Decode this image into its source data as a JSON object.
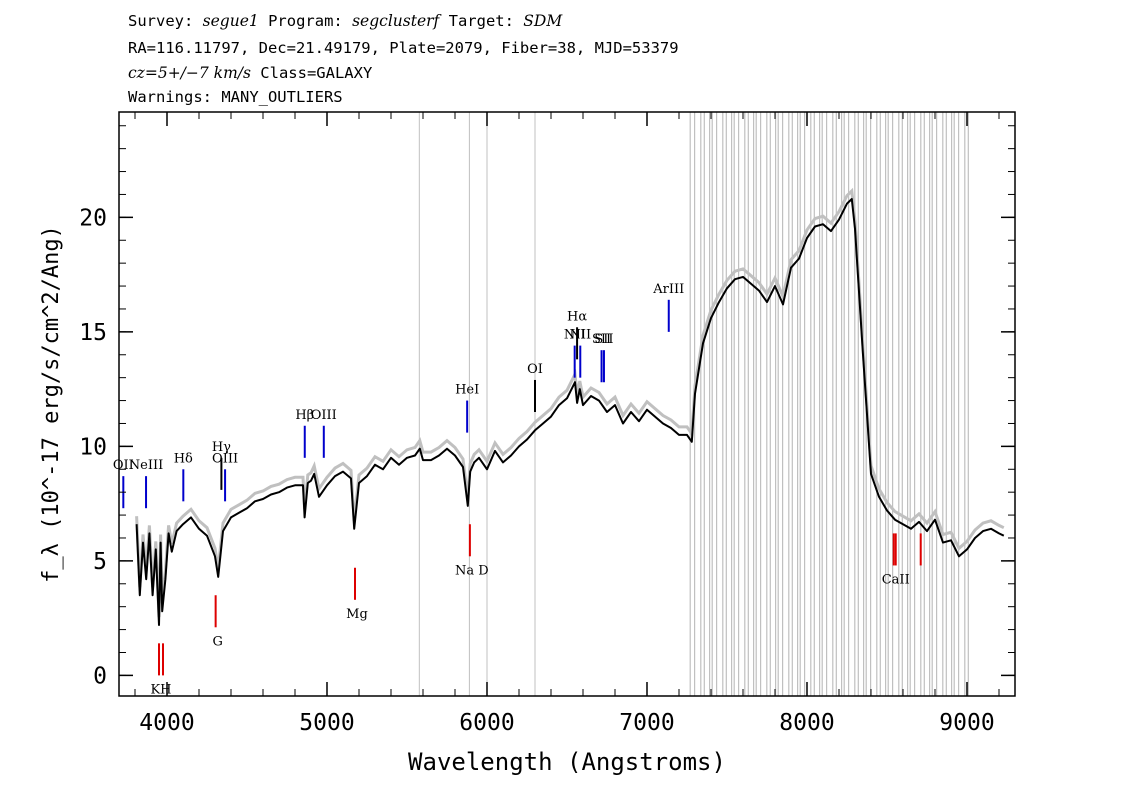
{
  "header": {
    "line1": {
      "survey_label": "Survey:",
      "survey": "segue1",
      "program_label": "Program:",
      "program": "segclusterf",
      "target_label": "Target:",
      "target": "SDM"
    },
    "line2": "RA=116.11797, Dec=21.49179, Plate=2079, Fiber=38, MJD=53379",
    "line3": {
      "cz": "cz=5+/−7 km/s",
      "class": "Class=GALAXY"
    },
    "line4": "Warnings: MANY_OUTLIERS"
  },
  "chart_data": {
    "type": "line",
    "xlabel": "Wavelength (Angstroms)",
    "ylabel": "f_λ (10^-17 erg/s/cm^2/Ang)",
    "xlim": [
      3700,
      9300
    ],
    "ylim": [
      -0.9,
      24.6
    ],
    "x_ticks": [
      4000,
      5000,
      6000,
      7000,
      8000,
      9000
    ],
    "y_ticks": [
      0,
      5,
      10,
      15,
      20
    ],
    "grid": false,
    "series": [
      {
        "color": "#000000",
        "x": [
          3810,
          3830,
          3850,
          3870,
          3890,
          3910,
          3930,
          3950,
          3960,
          3970,
          3990,
          4010,
          4030,
          4060,
          4100,
          4150,
          4200,
          4250,
          4300,
          4320,
          4350,
          4400,
          4450,
          4500,
          4550,
          4600,
          4650,
          4700,
          4750,
          4800,
          4850,
          4860,
          4880,
          4900,
          4920,
          4950,
          5000,
          5050,
          5100,
          5150,
          5170,
          5200,
          5250,
          5300,
          5350,
          5400,
          5450,
          5500,
          5550,
          5580,
          5600,
          5650,
          5700,
          5750,
          5800,
          5850,
          5880,
          5895,
          5920,
          5950,
          6000,
          6050,
          6100,
          6150,
          6200,
          6250,
          6300,
          6350,
          6400,
          6450,
          6500,
          6550,
          6563,
          6580,
          6600,
          6650,
          6700,
          6750,
          6800,
          6850,
          6900,
          6950,
          7000,
          7050,
          7100,
          7150,
          7200,
          7250,
          7280,
          7300,
          7350,
          7400,
          7450,
          7500,
          7550,
          7600,
          7650,
          7700,
          7750,
          7800,
          7850,
          7900,
          7950,
          8000,
          8050,
          8100,
          8150,
          8200,
          8250,
          8280,
          8300,
          8350,
          8400,
          8450,
          8500,
          8550,
          8600,
          8650,
          8700,
          8750,
          8800,
          8850,
          8900,
          8950,
          9000,
          9050,
          9100,
          9150,
          9200,
          9230
        ],
        "y": [
          6.6,
          3.5,
          5.8,
          4.2,
          6.2,
          3.5,
          5.5,
          2.2,
          5.8,
          2.8,
          4.2,
          6.2,
          5.4,
          6.3,
          6.6,
          6.9,
          6.4,
          6.1,
          5.2,
          4.3,
          6.3,
          6.9,
          7.1,
          7.3,
          7.6,
          7.7,
          7.9,
          8.0,
          8.2,
          8.3,
          8.3,
          6.9,
          8.4,
          8.5,
          8.8,
          7.8,
          8.3,
          8.7,
          8.9,
          8.6,
          6.4,
          8.4,
          8.7,
          9.2,
          9.0,
          9.5,
          9.2,
          9.5,
          9.6,
          9.9,
          9.4,
          9.4,
          9.6,
          9.9,
          9.6,
          9.1,
          7.4,
          8.9,
          9.3,
          9.5,
          9.0,
          9.8,
          9.3,
          9.6,
          10.0,
          10.3,
          10.7,
          11.0,
          11.3,
          11.8,
          12.1,
          12.8,
          11.9,
          12.5,
          11.8,
          12.2,
          12.0,
          11.5,
          11.8,
          11.0,
          11.5,
          11.1,
          11.6,
          11.3,
          11.0,
          10.8,
          10.5,
          10.5,
          10.2,
          12.3,
          14.5,
          15.6,
          16.3,
          16.9,
          17.3,
          17.4,
          17.1,
          16.8,
          16.3,
          17.0,
          16.2,
          17.8,
          18.2,
          19.1,
          19.6,
          19.7,
          19.4,
          19.9,
          20.6,
          20.8,
          19.5,
          14.0,
          8.8,
          7.8,
          7.2,
          6.8,
          6.6,
          6.4,
          6.7,
          6.3,
          6.8,
          5.8,
          5.9,
          5.2,
          5.5,
          6.0,
          6.3,
          6.4,
          6.2,
          6.1
        ]
      }
    ],
    "masked_regions": [
      5577,
      5890,
      6000,
      6300
    ],
    "masked_band": [
      7270,
      9030
    ],
    "lines": [
      {
        "label": "KH",
        "wave": 3950,
        "flux": 1.4,
        "color": "#dd0000",
        "dir": "down"
      },
      {
        "label": "G",
        "wave": 4304,
        "flux": 3.5,
        "color": "#dd0000",
        "dir": "down"
      },
      {
        "label": "Mg",
        "wave": 5175,
        "flux": 4.7,
        "color": "#dd0000",
        "dir": "down"
      },
      {
        "label": "Na D",
        "wave": 5893,
        "flux": 6.6,
        "color": "#dd0000",
        "dir": "down"
      },
      {
        "label": "CaII",
        "wave": 8542,
        "flux": 6.2,
        "color": "#dd0000",
        "dir": "down"
      },
      {
        "label": "OII",
        "wave": 3727,
        "flux": 7.3,
        "color": "#0000cc",
        "dir": "up"
      },
      {
        "label": "NeIII",
        "wave": 3869,
        "flux": 7.3,
        "color": "#0000cc",
        "dir": "up"
      },
      {
        "label": "Hδ",
        "wave": 4102,
        "flux": 7.6,
        "color": "#0000cc",
        "dir": "up"
      },
      {
        "label": "Hγ",
        "wave": 4340,
        "flux": 8.1,
        "color": "#000000",
        "dir": "up"
      },
      {
        "label": "OIII",
        "wave": 4363,
        "flux": 7.6,
        "color": "#0000cc",
        "dir": "up"
      },
      {
        "label": "Hβ",
        "wave": 4861,
        "flux": 9.5,
        "color": "#0000cc",
        "dir": "up"
      },
      {
        "label": "OIII",
        "wave": 4980,
        "flux": 9.5,
        "color": "#0000cc",
        "dir": "up"
      },
      {
        "label": "HeI",
        "wave": 5876,
        "flux": 10.6,
        "color": "#0000cc",
        "dir": "up"
      },
      {
        "label": "OI",
        "wave": 6300,
        "flux": 11.5,
        "color": "#000000",
        "dir": "up"
      },
      {
        "label": "NII",
        "wave": 6548,
        "flux": 13.0,
        "color": "#0000cc",
        "dir": "up"
      },
      {
        "label": "Hα",
        "wave": 6563,
        "flux": 13.8,
        "color": "#000000",
        "dir": "up"
      },
      {
        "label": "NII",
        "wave": 6583,
        "flux": 13.0,
        "color": "#0000cc",
        "dir": "up"
      },
      {
        "label": "SII",
        "wave": 6716,
        "flux": 12.8,
        "color": "#0000cc",
        "dir": "up"
      },
      {
        "label": "SII",
        "wave": 6731,
        "flux": 12.8,
        "color": "#0000cc",
        "dir": "up"
      },
      {
        "label": "ArIII",
        "wave": 7136,
        "flux": 15.0,
        "color": "#0000cc",
        "dir": "up"
      }
    ],
    "colors": {
      "flux": "#000000",
      "error": "#c0c0c0",
      "absorption": "#dd0000",
      "emission": "#0000cc"
    }
  }
}
